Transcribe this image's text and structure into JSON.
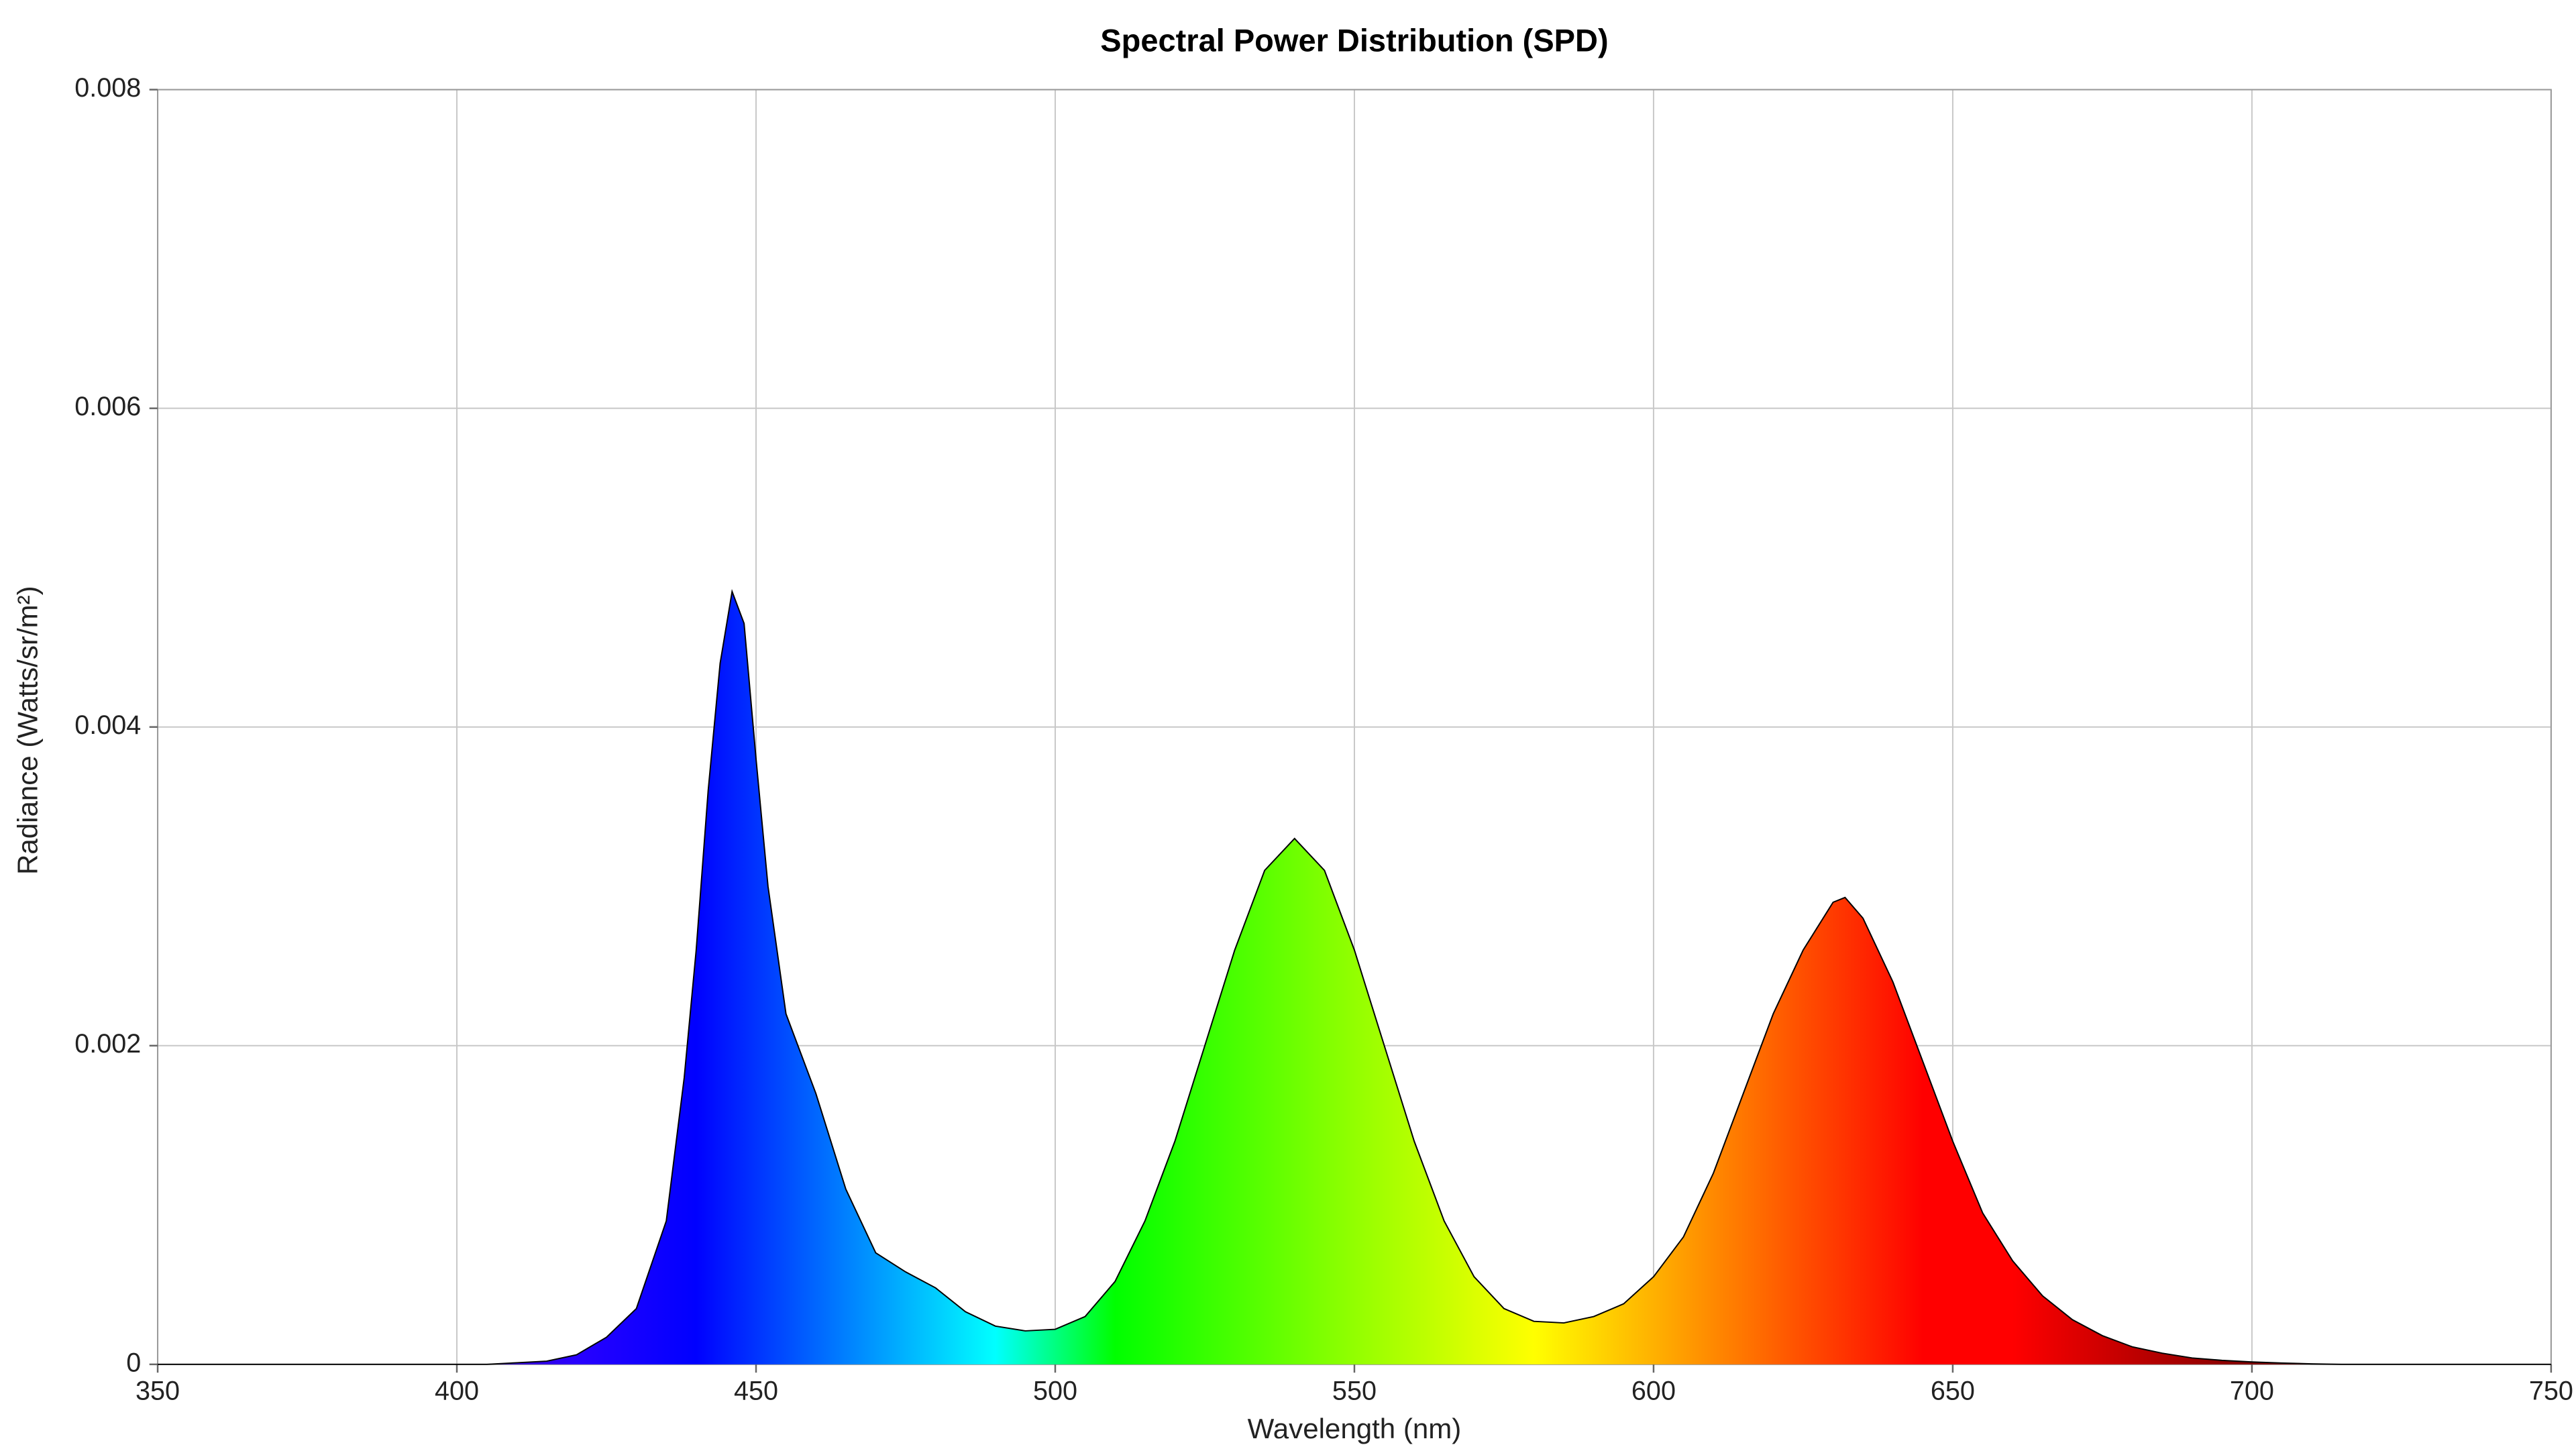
{
  "chart_data": {
    "type": "area",
    "title": "Spectral Power Distribution (SPD)",
    "x_label": "Wavelength (nm)",
    "y_label": "Radiance (Watts/sr/m²)",
    "x": [
      350,
      355,
      360,
      365,
      370,
      375,
      380,
      385,
      390,
      395,
      400,
      405,
      410,
      415,
      420,
      425,
      430,
      435,
      438,
      440,
      442,
      444,
      446,
      448,
      450,
      452,
      455,
      460,
      465,
      470,
      475,
      480,
      485,
      490,
      495,
      500,
      505,
      510,
      515,
      520,
      525,
      530,
      535,
      540,
      545,
      550,
      555,
      560,
      565,
      570,
      575,
      580,
      585,
      590,
      595,
      600,
      605,
      610,
      615,
      620,
      625,
      630,
      632,
      635,
      640,
      645,
      650,
      655,
      660,
      665,
      670,
      675,
      680,
      685,
      690,
      695,
      700,
      705,
      710,
      715,
      720,
      725,
      730,
      735,
      740,
      745,
      750
    ],
    "values": [
      0,
      0,
      0,
      0,
      0,
      0,
      0,
      0,
      0,
      0,
      0,
      0,
      1e-05,
      2e-05,
      6e-05,
      0.00017,
      0.00035,
      0.0009,
      0.0018,
      0.0026,
      0.0036,
      0.0044,
      0.00485,
      0.00465,
      0.0038,
      0.003,
      0.0022,
      0.0017,
      0.0011,
      0.0007,
      0.00058,
      0.00048,
      0.00033,
      0.00024,
      0.00021,
      0.00022,
      0.0003,
      0.00052,
      0.0009,
      0.0014,
      0.002,
      0.0026,
      0.0031,
      0.0033,
      0.0031,
      0.0026,
      0.002,
      0.0014,
      0.0009,
      0.00055,
      0.00035,
      0.00027,
      0.00026,
      0.0003,
      0.00038,
      0.00055,
      0.0008,
      0.0012,
      0.0017,
      0.0022,
      0.0026,
      0.0029,
      0.00293,
      0.0028,
      0.0024,
      0.0019,
      0.0014,
      0.00095,
      0.00065,
      0.00043,
      0.00028,
      0.00018,
      0.00011,
      7e-05,
      4e-05,
      2.5e-05,
      1.5e-05,
      8e-06,
      3e-06,
      0,
      0,
      0,
      0,
      0,
      0,
      0,
      0
    ],
    "xlim": [
      350,
      750
    ],
    "ylim": [
      0,
      0.008
    ],
    "xticks": [
      350,
      400,
      450,
      500,
      550,
      600,
      650,
      700,
      750
    ],
    "yticks": [
      0,
      0.002,
      0.004,
      0.006,
      0.008
    ],
    "grid": true,
    "line_color": "#000000"
  }
}
